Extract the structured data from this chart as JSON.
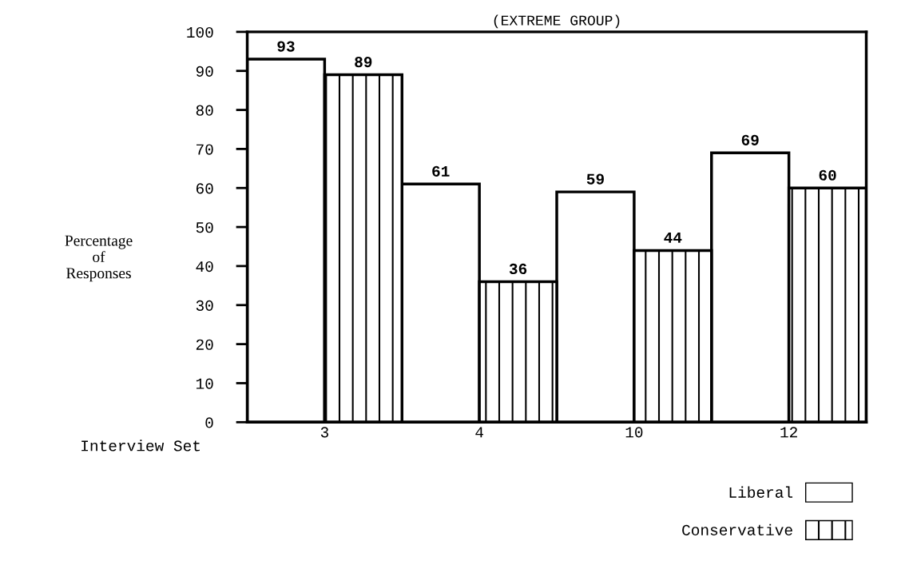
{
  "chart_data": {
    "type": "bar",
    "title": "(EXTREME GROUP)",
    "xlabel": "Interview Set",
    "ylabel": "Percentage\nof\nResponses",
    "categories": [
      "3",
      "4",
      "10",
      "12"
    ],
    "series": [
      {
        "name": "Liberal",
        "color": "#ffffff",
        "values": [
          93,
          61,
          59,
          69
        ]
      },
      {
        "name": "Conservative",
        "color": "#000000",
        "values": [
          89,
          36,
          44,
          60
        ]
      }
    ],
    "ylim": [
      0,
      100
    ],
    "yticks": [
      0,
      10,
      20,
      30,
      40,
      50,
      60,
      70,
      80,
      90,
      100
    ],
    "data_labels": true,
    "legend": "bottom right",
    "grid": false
  }
}
